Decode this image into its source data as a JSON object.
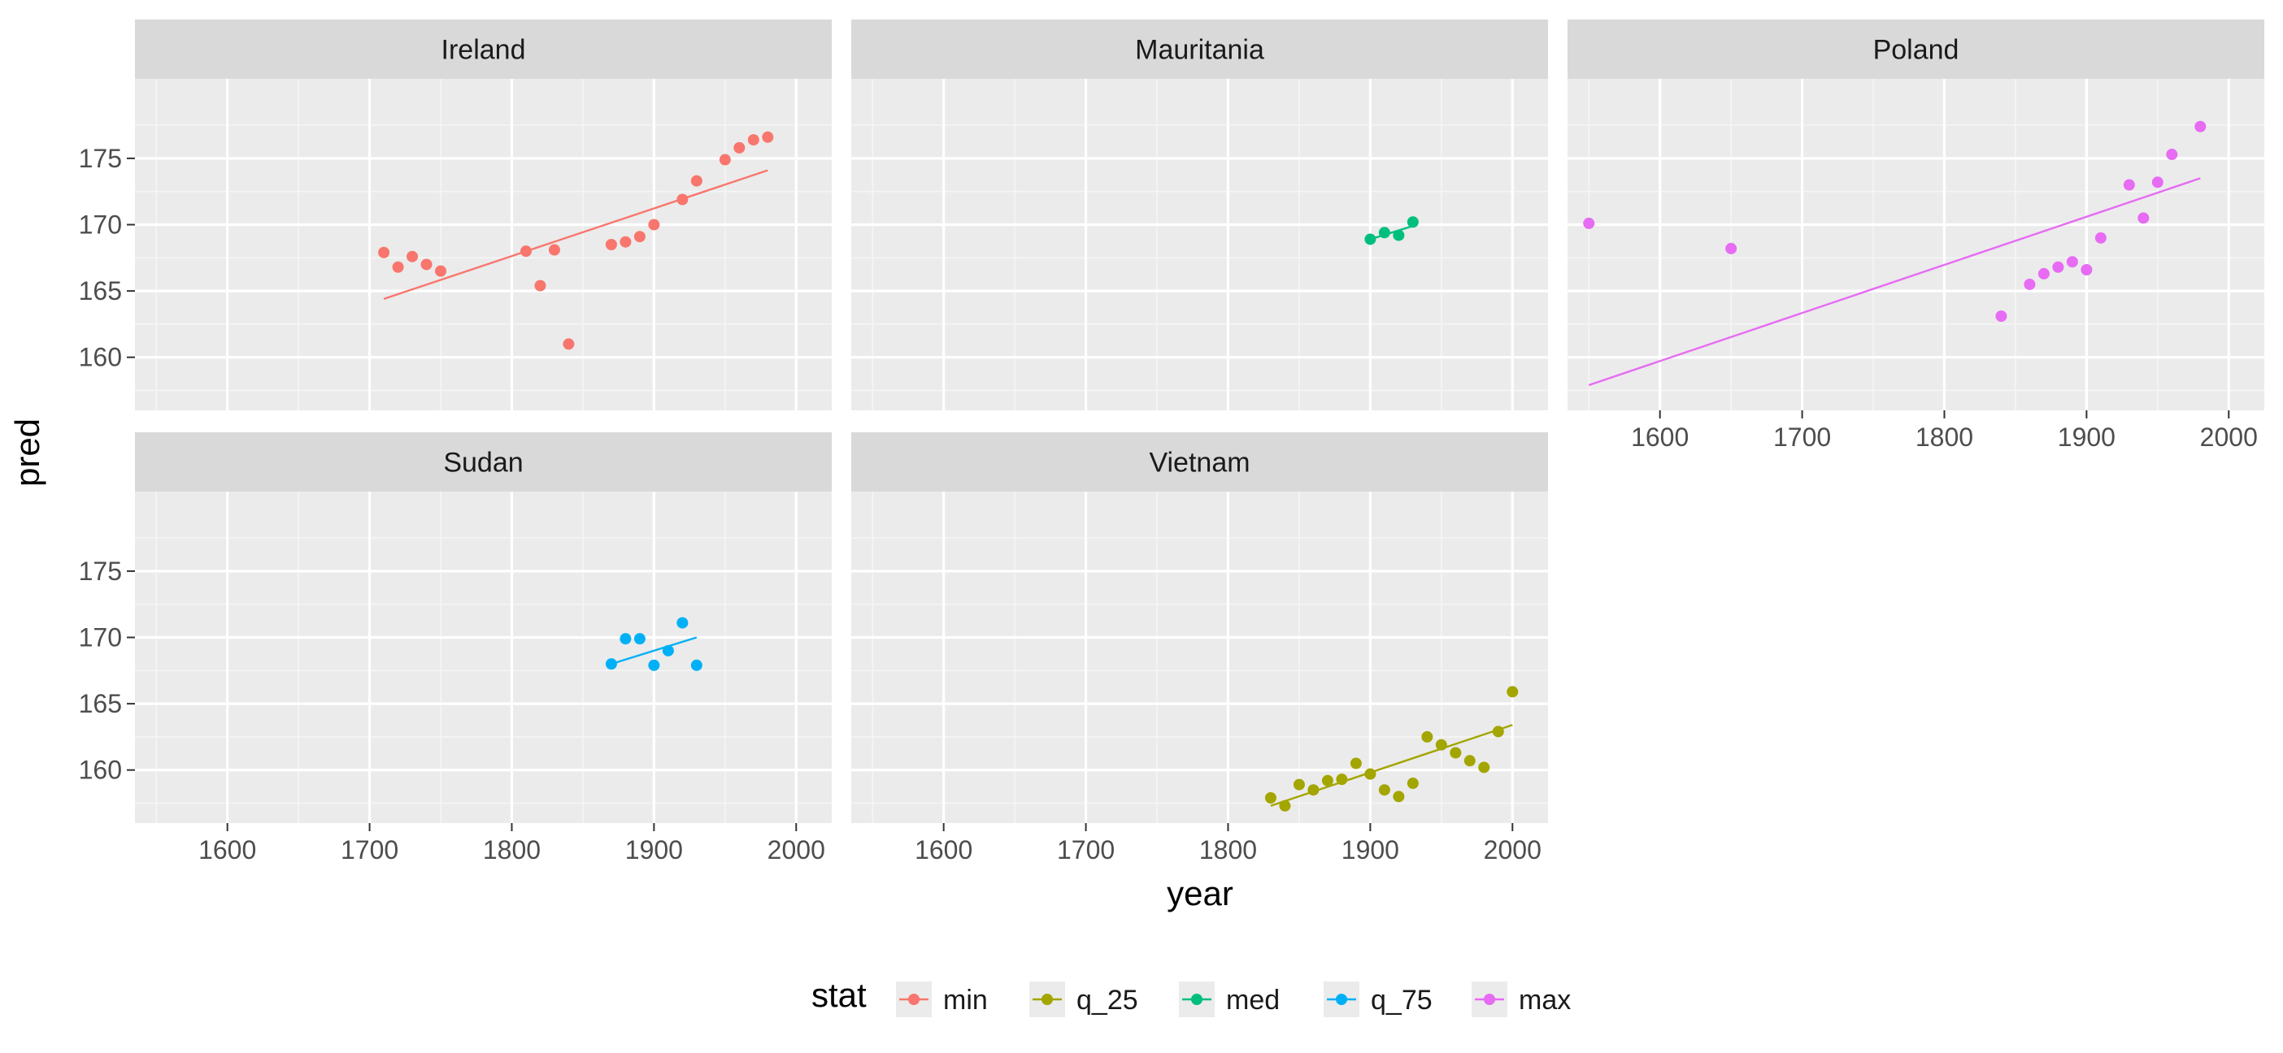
{
  "chart_data": {
    "type": "scatter",
    "facet_by": "country",
    "xlabel": "year",
    "ylabel": "pred",
    "xlim": [
      1535,
      2025
    ],
    "ylim": [
      156,
      181
    ],
    "x_ticks": [
      1600,
      1700,
      1800,
      1900,
      2000
    ],
    "y_ticks": [
      160,
      165,
      170,
      175
    ],
    "grid": true,
    "legend": {
      "title": "stat",
      "position": "bottom",
      "entries": [
        {
          "label": "min",
          "color": "#F8766D"
        },
        {
          "label": "q_25",
          "color": "#A3A500"
        },
        {
          "label": "med",
          "color": "#00BF7D"
        },
        {
          "label": "q_75",
          "color": "#00B0F6"
        },
        {
          "label": "max",
          "color": "#E76BF3"
        }
      ]
    },
    "panels": [
      {
        "title": "Ireland",
        "stat": "min",
        "color": "#F8766D",
        "points": [
          [
            1710,
            167.9
          ],
          [
            1720,
            166.8
          ],
          [
            1730,
            167.6
          ],
          [
            1740,
            167.0
          ],
          [
            1750,
            166.5
          ],
          [
            1810,
            168.0
          ],
          [
            1820,
            165.4
          ],
          [
            1830,
            168.1
          ],
          [
            1840,
            161.0
          ],
          [
            1870,
            168.5
          ],
          [
            1880,
            168.7
          ],
          [
            1890,
            169.1
          ],
          [
            1900,
            170.0
          ],
          [
            1920,
            171.9
          ],
          [
            1930,
            173.3
          ],
          [
            1950,
            174.9
          ],
          [
            1960,
            175.8
          ],
          [
            1970,
            176.4
          ],
          [
            1980,
            176.6
          ]
        ],
        "fit": [
          [
            1710,
            164.4
          ],
          [
            1980,
            174.1
          ]
        ]
      },
      {
        "title": "Mauritania",
        "stat": "med",
        "color": "#00BF7D",
        "points": [
          [
            1900,
            168.9
          ],
          [
            1910,
            169.4
          ],
          [
            1920,
            169.2
          ],
          [
            1930,
            170.2
          ]
        ],
        "fit": [
          [
            1900,
            168.9
          ],
          [
            1930,
            169.9
          ]
        ]
      },
      {
        "title": "Poland",
        "stat": "max",
        "color": "#E76BF3",
        "points": [
          [
            1550,
            170.1
          ],
          [
            1650,
            168.2
          ],
          [
            1840,
            163.1
          ],
          [
            1860,
            165.5
          ],
          [
            1870,
            166.3
          ],
          [
            1880,
            166.8
          ],
          [
            1890,
            167.2
          ],
          [
            1900,
            166.6
          ],
          [
            1910,
            169.0
          ],
          [
            1930,
            173.0
          ],
          [
            1940,
            170.5
          ],
          [
            1950,
            173.2
          ],
          [
            1960,
            175.3
          ],
          [
            1980,
            177.4
          ]
        ],
        "fit": [
          [
            1550,
            157.9
          ],
          [
            1980,
            173.5
          ]
        ]
      },
      {
        "title": "Sudan",
        "stat": "q_75",
        "color": "#00B0F6",
        "points": [
          [
            1870,
            168.0
          ],
          [
            1880,
            169.9
          ],
          [
            1890,
            169.9
          ],
          [
            1900,
            167.9
          ],
          [
            1910,
            169.0
          ],
          [
            1920,
            171.1
          ],
          [
            1930,
            167.9
          ]
        ],
        "fit": [
          [
            1870,
            168.0
          ],
          [
            1930,
            170.0
          ]
        ]
      },
      {
        "title": "Vietnam",
        "stat": "q_25",
        "color": "#A3A500",
        "points": [
          [
            1830,
            157.9
          ],
          [
            1840,
            157.3
          ],
          [
            1850,
            158.9
          ],
          [
            1860,
            158.5
          ],
          [
            1870,
            159.2
          ],
          [
            1880,
            159.3
          ],
          [
            1890,
            160.5
          ],
          [
            1900,
            159.7
          ],
          [
            1910,
            158.5
          ],
          [
            1920,
            158.0
          ],
          [
            1930,
            159.0
          ],
          [
            1940,
            162.5
          ],
          [
            1950,
            161.9
          ],
          [
            1960,
            161.3
          ],
          [
            1970,
            160.7
          ],
          [
            1980,
            160.2
          ],
          [
            1990,
            162.9
          ],
          [
            2000,
            165.9
          ]
        ],
        "fit": [
          [
            1830,
            157.3
          ],
          [
            2000,
            163.4
          ]
        ]
      }
    ]
  }
}
